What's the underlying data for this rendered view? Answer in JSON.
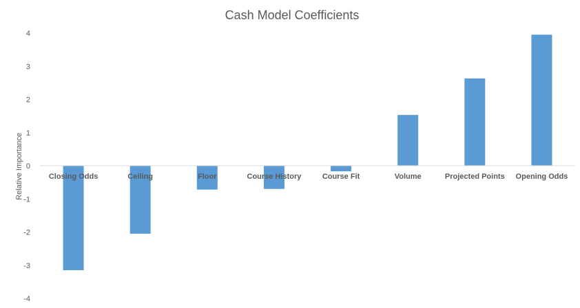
{
  "chart_data": {
    "type": "bar",
    "title": "Cash Model Coefficients",
    "xlabel": "",
    "ylabel": "Relative Importance",
    "categories": [
      "Closing Odds",
      "Ceiling",
      "Floor",
      "Course History",
      "Course Fit",
      "Volume",
      "Projected Points",
      "Opening Odds"
    ],
    "values": [
      -3.15,
      -2.05,
      -0.72,
      -0.7,
      -0.17,
      1.53,
      2.63,
      3.95
    ],
    "ylim": [
      -4,
      4
    ],
    "yticks": [
      "-4",
      "-3",
      "-2",
      "-1",
      "0",
      "1",
      "2",
      "3",
      "4"
    ],
    "grid": false,
    "legend": "none",
    "bar_color": "#5b9bd5",
    "axis_color": "#d9d9d9"
  }
}
